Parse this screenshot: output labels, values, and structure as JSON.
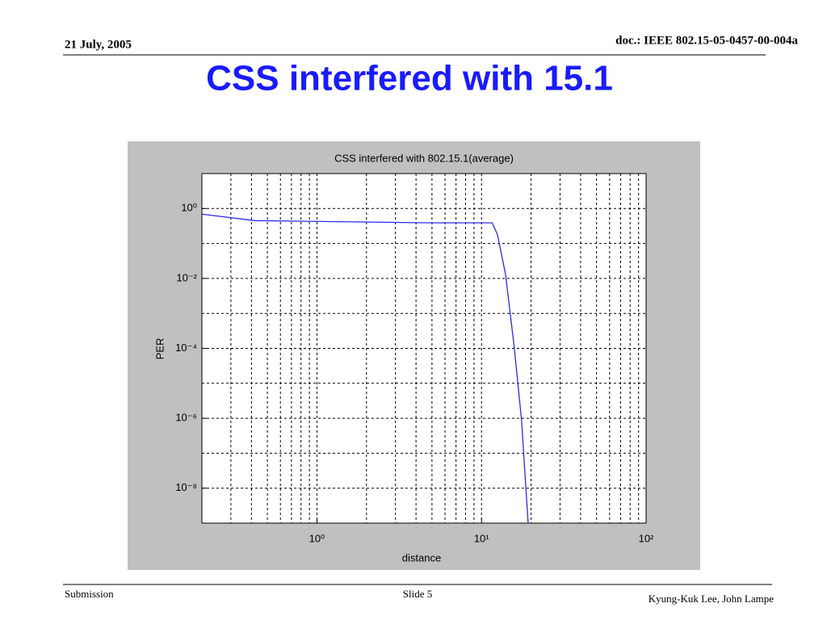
{
  "header": {
    "date": "21 July, 2005",
    "doc": "doc.: IEEE 802.15-05-0457-00-004a",
    "title": "CSS interfered with 15.1"
  },
  "footer": {
    "left": "Submission",
    "center": "Slide 5",
    "right": "Kyung-Kuk Lee, John Lampe"
  },
  "chart_data": {
    "type": "line",
    "title": "CSS interfered with 802.15.1(average)",
    "x_label": "distance",
    "y_label": "PER",
    "x_scale": "log",
    "y_scale": "log",
    "grid": true,
    "xlim": [
      0.2,
      100
    ],
    "ylim": [
      1e-09,
      10
    ],
    "xticks": [
      {
        "value": 1,
        "label": "10⁰"
      },
      {
        "value": 10,
        "label": "10¹"
      },
      {
        "value": 100,
        "label": "10²"
      }
    ],
    "yticks": [
      {
        "value": 1,
        "label": "10⁰"
      },
      {
        "value": 0.01,
        "label": "10⁻²"
      },
      {
        "value": 0.0001,
        "label": "10⁻⁴"
      },
      {
        "value": 1e-06,
        "label": "10⁻⁶"
      },
      {
        "value": 1e-08,
        "label": "10⁻⁸"
      }
    ],
    "series": [
      {
        "color": "#2a2ae8",
        "x": [
          0.2,
          0.42,
          4.8,
          11.6,
          12.5,
          14.0,
          15.8,
          17.5,
          19.2
        ],
        "values": [
          0.69,
          0.45,
          0.39,
          0.39,
          0.18,
          0.013,
          0.00011,
          9e-07,
          1e-09
        ]
      }
    ]
  }
}
